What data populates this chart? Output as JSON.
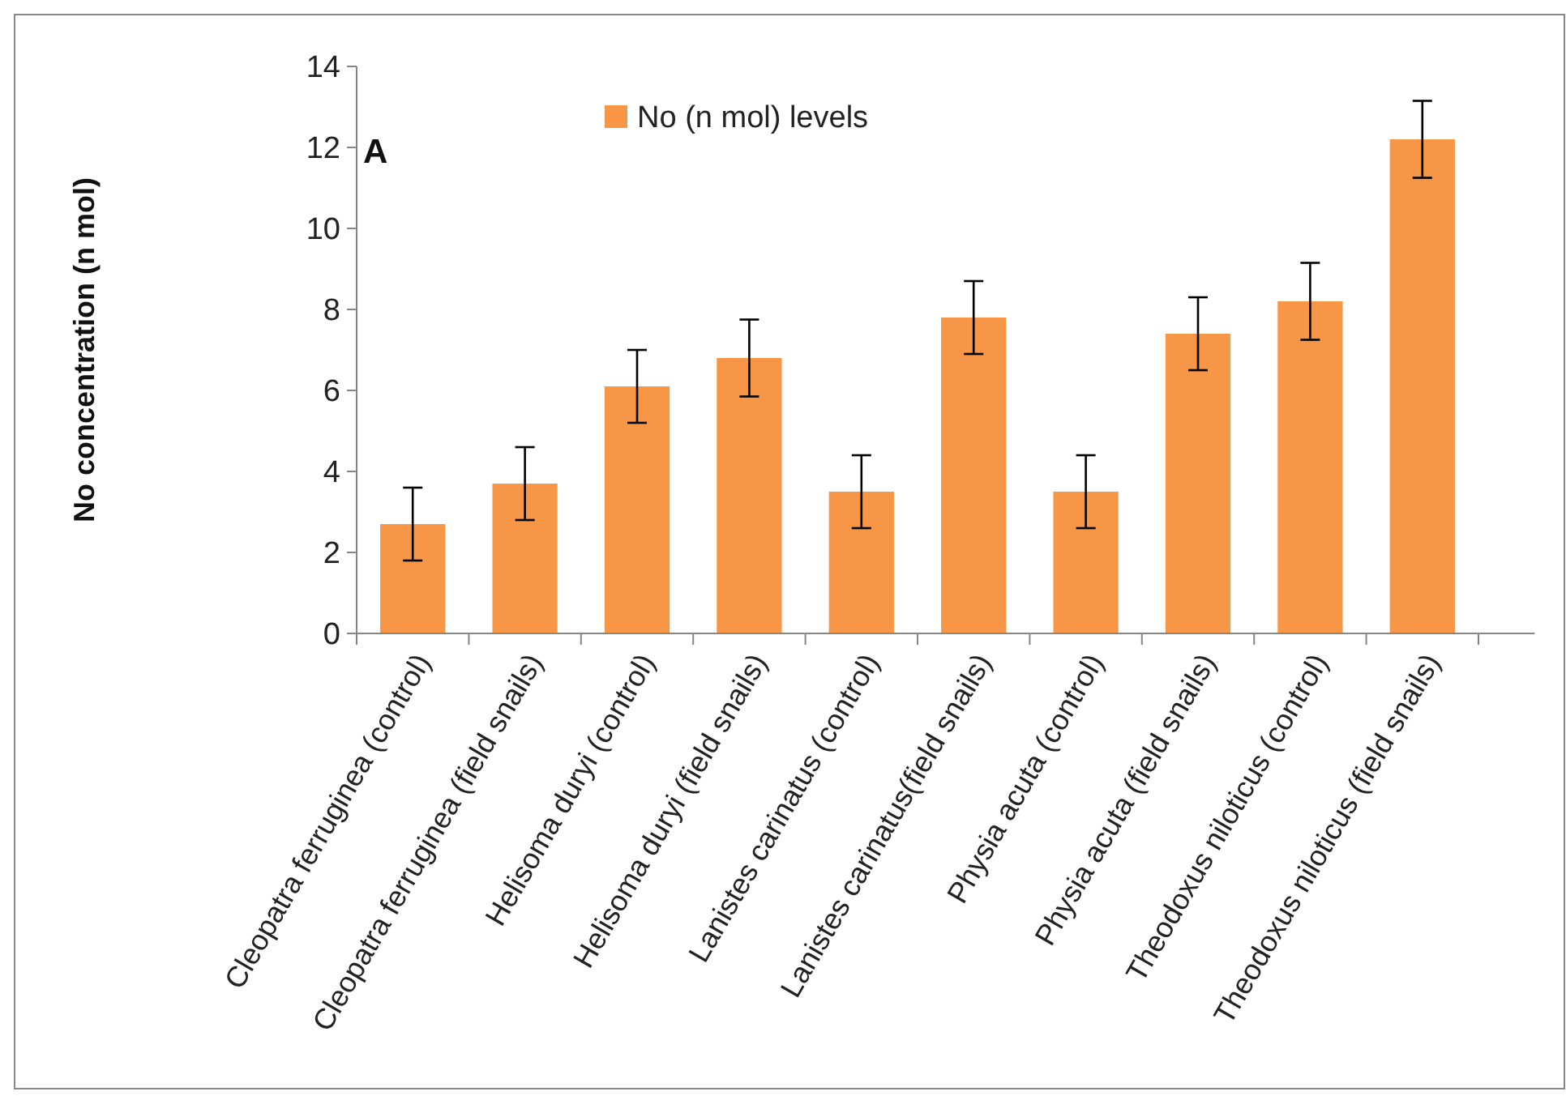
{
  "chart_data": {
    "type": "bar",
    "ylabel": "No concentration (n mol)",
    "categories": [
      "Cleopatra ferruginea (control)",
      "Cleopatra ferruginea (field snails)",
      "Helisoma duryi (control)",
      "Helisoma duryi (field snails)",
      "Lanistes carinatus (control)",
      "Lanistes carinatus(field snails)",
      "Physia acuta (control)",
      "Physia acuta (field snails)",
      "Theodoxus niloticus (control)",
      "Theodoxus niloticus (field snails)"
    ],
    "series": [
      {
        "name": "No (n mol) levels",
        "color": "#f79646",
        "values": [
          2.7,
          3.7,
          6.1,
          6.8,
          3.5,
          7.8,
          3.5,
          7.4,
          8.2,
          12.2
        ],
        "errors": [
          0.9,
          0.9,
          0.9,
          0.95,
          0.9,
          0.9,
          0.9,
          0.9,
          0.95,
          0.95
        ]
      }
    ],
    "ylim": [
      0,
      14
    ],
    "yticks": [
      0,
      2,
      4,
      6,
      8,
      10,
      12,
      14
    ],
    "legend": "top",
    "annotations": [
      "A"
    ]
  }
}
